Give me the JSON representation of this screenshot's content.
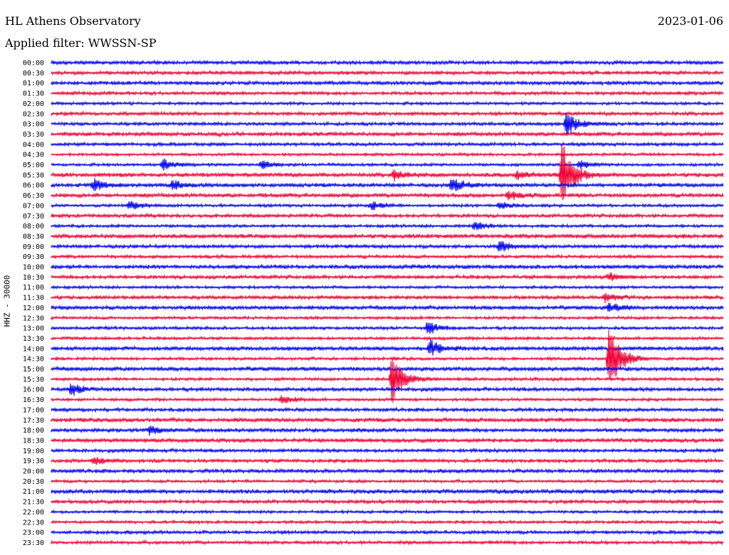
{
  "header": {
    "title": "HL Athens Observatory",
    "date": "2023-01-06",
    "filter": "Applied filter: WWSSN-SP"
  },
  "chart_data": {
    "type": "line",
    "chart_kind": "helicorder",
    "ylabel": "HHZ - 30000",
    "line_interval_minutes": 30,
    "row_labels": [
      "00:00",
      "00:30",
      "01:00",
      "01:30",
      "02:00",
      "02:30",
      "03:00",
      "03:30",
      "04:00",
      "04:30",
      "05:00",
      "05:30",
      "06:00",
      "06:30",
      "07:00",
      "07:30",
      "08:00",
      "08:30",
      "09:00",
      "09:30",
      "10:00",
      "10:30",
      "11:00",
      "11:30",
      "12:00",
      "12:30",
      "13:00",
      "13:30",
      "14:00",
      "14:30",
      "15:00",
      "15:30",
      "16:00",
      "16:30",
      "17:00",
      "17:30",
      "18:00",
      "18:30",
      "19:00",
      "19:30",
      "20:00",
      "20:30",
      "21:00",
      "21:30",
      "22:00",
      "22:30",
      "23:00",
      "23:30"
    ],
    "x_range_minutes": [
      0,
      30
    ],
    "colors": [
      "#0000ee",
      "#ee0033"
    ],
    "events": [
      {
        "row": "03:00",
        "minute": 23.0,
        "amplitude": 3.0
      },
      {
        "row": "05:00",
        "minute": 5.0,
        "amplitude": 1.3
      },
      {
        "row": "05:00",
        "minute": 9.4,
        "amplitude": 1.0
      },
      {
        "row": "05:00",
        "minute": 23.6,
        "amplitude": 1.0
      },
      {
        "row": "05:30",
        "minute": 15.3,
        "amplitude": 1.2
      },
      {
        "row": "05:30",
        "minute": 20.8,
        "amplitude": 1.0
      },
      {
        "row": "05:30",
        "minute": 22.8,
        "amplitude": 8.0
      },
      {
        "row": "06:00",
        "minute": 1.9,
        "amplitude": 1.4
      },
      {
        "row": "06:00",
        "minute": 5.4,
        "amplitude": 1.0
      },
      {
        "row": "06:00",
        "minute": 17.9,
        "amplitude": 1.8
      },
      {
        "row": "06:30",
        "minute": 20.4,
        "amplitude": 1.0
      },
      {
        "row": "07:00",
        "minute": 3.5,
        "amplitude": 1.0
      },
      {
        "row": "07:00",
        "minute": 14.3,
        "amplitude": 1.0
      },
      {
        "row": "07:00",
        "minute": 20.0,
        "amplitude": 1.0
      },
      {
        "row": "08:00",
        "minute": 18.9,
        "amplitude": 1.0
      },
      {
        "row": "09:00",
        "minute": 20.0,
        "amplitude": 1.2
      },
      {
        "row": "10:30",
        "minute": 24.9,
        "amplitude": 1.0
      },
      {
        "row": "11:30",
        "minute": 24.7,
        "amplitude": 1.0
      },
      {
        "row": "12:00",
        "minute": 24.9,
        "amplitude": 1.0
      },
      {
        "row": "13:00",
        "minute": 16.8,
        "amplitude": 1.5
      },
      {
        "row": "14:00",
        "minute": 16.9,
        "amplitude": 2.0
      },
      {
        "row": "14:30",
        "minute": 24.9,
        "amplitude": 9.0
      },
      {
        "row": "15:30",
        "minute": 15.2,
        "amplitude": 6.0
      },
      {
        "row": "16:00",
        "minute": 0.9,
        "amplitude": 1.3
      },
      {
        "row": "16:30",
        "minute": 10.3,
        "amplitude": 1.0
      },
      {
        "row": "18:00",
        "minute": 4.4,
        "amplitude": 1.0
      },
      {
        "row": "19:30",
        "minute": 1.9,
        "amplitude": 1.0
      }
    ]
  }
}
